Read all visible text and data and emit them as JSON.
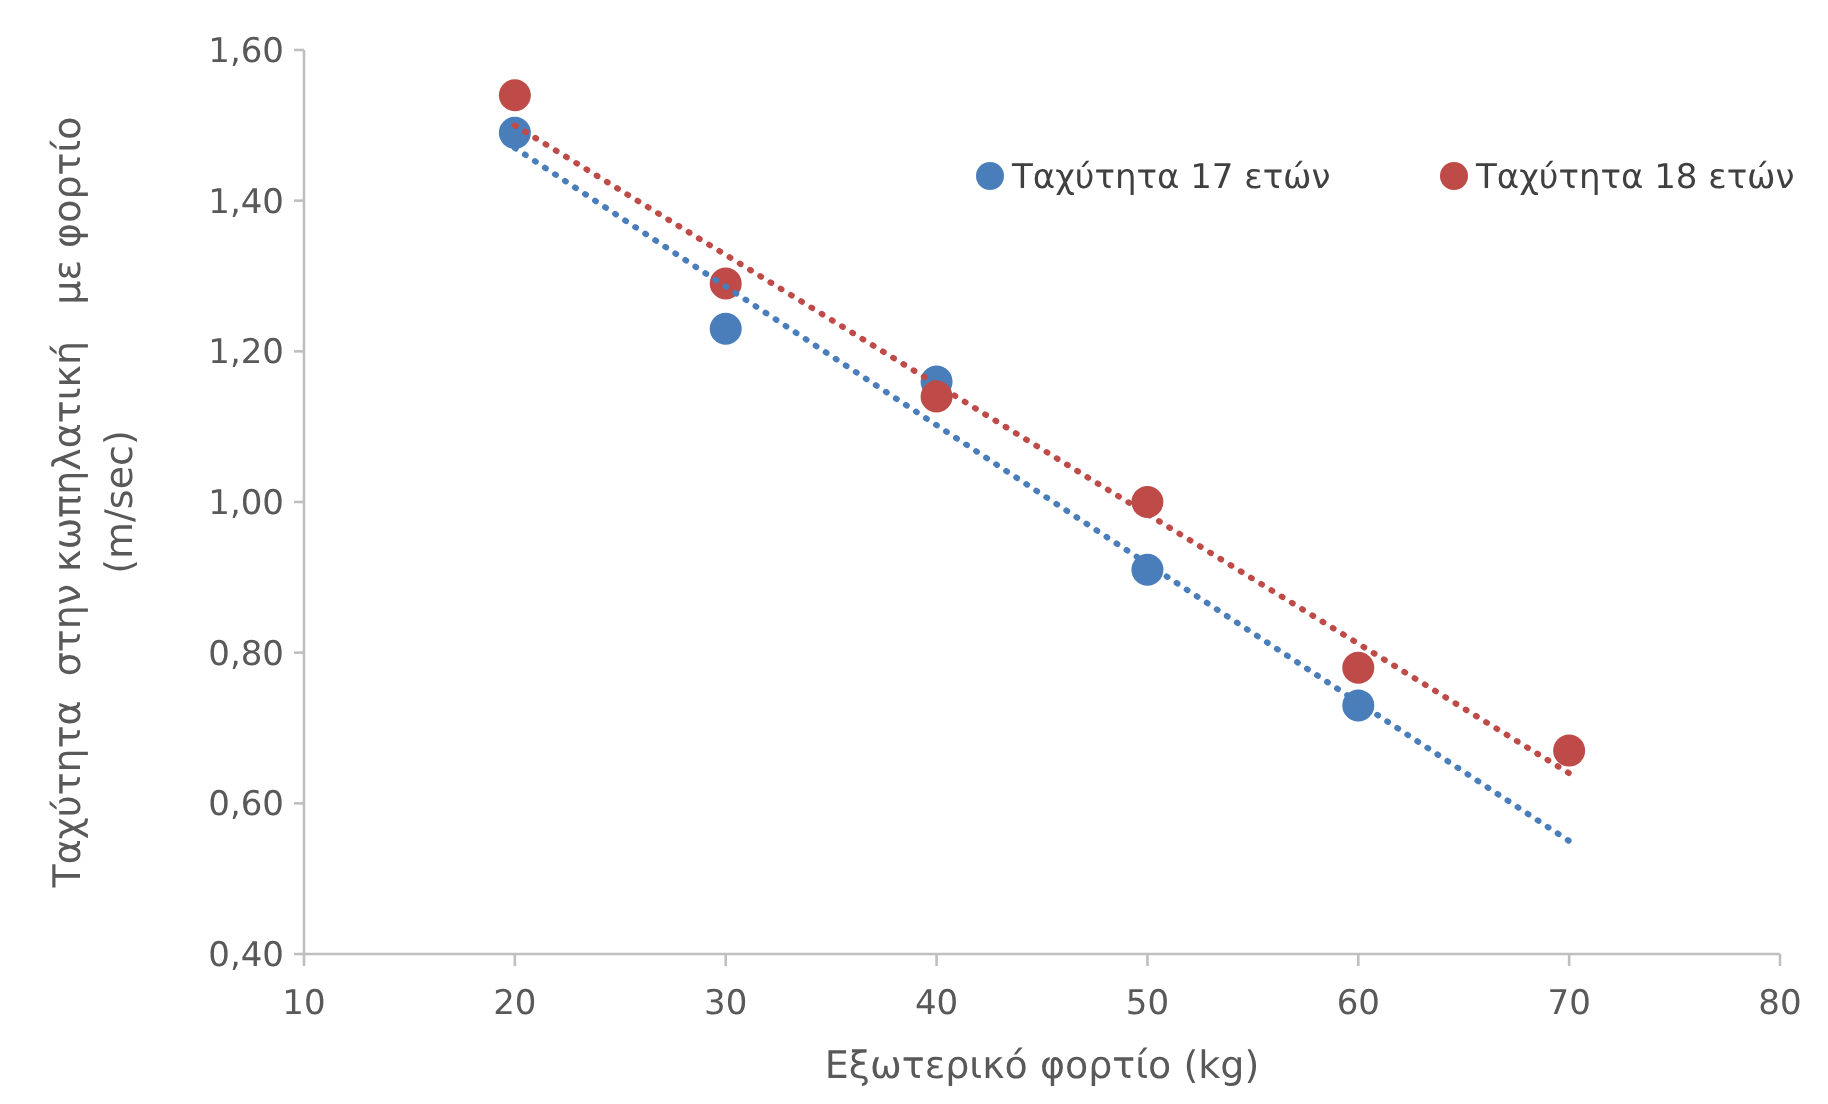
{
  "chart_data": {
    "type": "scatter",
    "xlabel": "Εξωτερικό φορτίο (kg)",
    "ylabel": "Ταχύτητα  στην κωπηλατική   με φορτίο (m/sec)",
    "xlim": [
      10,
      80
    ],
    "xticks": [
      10,
      20,
      30,
      40,
      50,
      60,
      70,
      80
    ],
    "ylim": [
      0.4,
      1.6
    ],
    "yticks": [
      {
        "value": 0.4,
        "label": "0,40"
      },
      {
        "value": 0.6,
        "label": "0,60"
      },
      {
        "value": 0.8,
        "label": "0,80"
      },
      {
        "value": 1.0,
        "label": "1,00"
      },
      {
        "value": 1.2,
        "label": "1,20"
      },
      {
        "value": 1.4,
        "label": "1,40"
      },
      {
        "value": 1.6,
        "label": "1,60"
      }
    ],
    "legend": "top right",
    "marker": "circle",
    "series": [
      {
        "name": "Ταχύτητα 17 ετών",
        "color": "#4a7ebb",
        "x": [
          20,
          30,
          40,
          50,
          60
        ],
        "values": [
          1.49,
          1.23,
          1.16,
          0.91,
          0.73
        ]
      },
      {
        "name": "Ταχύτητα 18 ετών",
        "color": "#be4b48",
        "x": [
          20,
          30,
          40,
          50,
          60,
          70
        ],
        "values": [
          1.54,
          1.29,
          1.14,
          1.0,
          0.78,
          0.67
        ]
      },
      {
        "type": "line",
        "line_style": "dotted",
        "marker": "none",
        "color": "#4a7ebb",
        "x": [
          20,
          70
        ],
        "values": [
          1.47,
          0.55
        ]
      },
      {
        "type": "line",
        "line_style": "dotted",
        "marker": "none",
        "color": "#be4b48",
        "x": [
          20,
          70
        ],
        "values": [
          1.5,
          0.64
        ]
      }
    ]
  }
}
